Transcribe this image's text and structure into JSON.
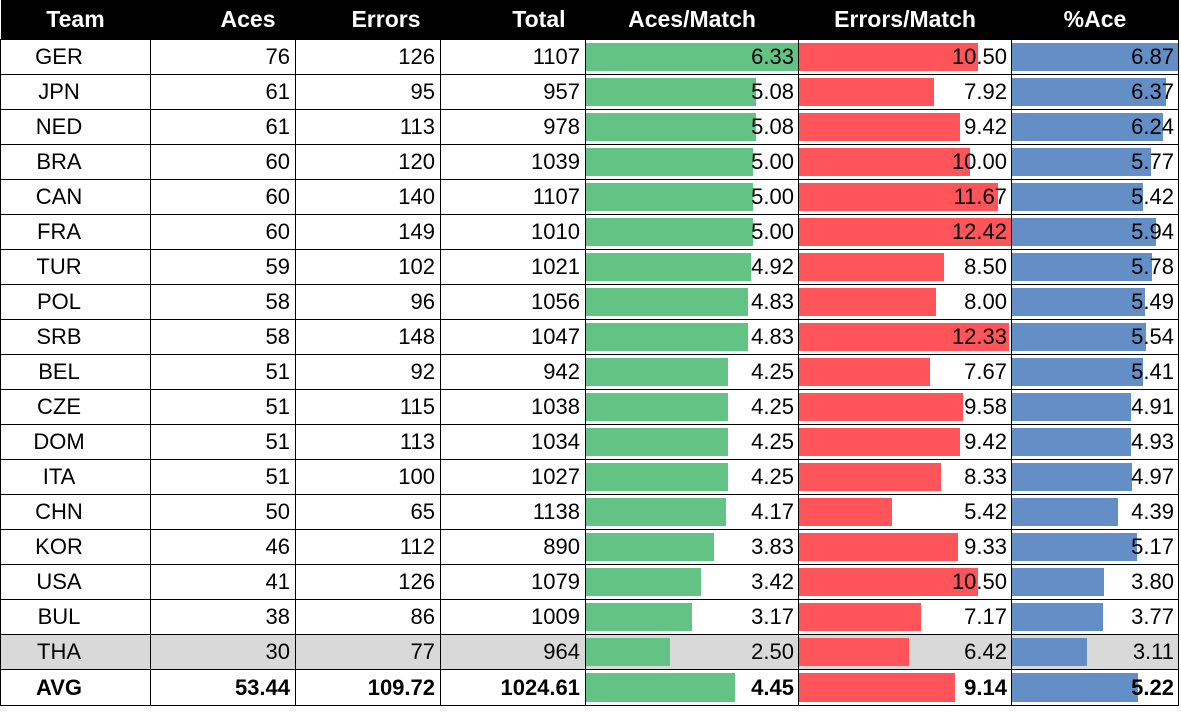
{
  "colors": {
    "header_bg": "#000000",
    "header_text": "#ffffff",
    "aces_bar": "#63c384",
    "errors_bar": "#ff555a",
    "pct_bar": "#638ec6",
    "highlight_row": "#d9d9d9"
  },
  "chart_data": {
    "type": "table",
    "columns": [
      "Team",
      "Aces",
      "Errors",
      "Total",
      "Aces/Match",
      "Errors/Match",
      "%Ace"
    ],
    "data_bars": {
      "Aces/Match": {
        "min": 0,
        "max": 6.33
      },
      "Errors/Match": {
        "min": 0,
        "max": 12.42
      },
      "%Ace": {
        "min": 0,
        "max": 6.87
      }
    },
    "rows": [
      {
        "team": "GER",
        "aces": "76",
        "errors": "126",
        "total": "1107",
        "aces_per_match": "6.33",
        "errors_per_match": "10.50",
        "pct_ace": "6.87"
      },
      {
        "team": "JPN",
        "aces": "61",
        "errors": "95",
        "total": "957",
        "aces_per_match": "5.08",
        "errors_per_match": "7.92",
        "pct_ace": "6.37"
      },
      {
        "team": "NED",
        "aces": "61",
        "errors": "113",
        "total": "978",
        "aces_per_match": "5.08",
        "errors_per_match": "9.42",
        "pct_ace": "6.24"
      },
      {
        "team": "BRA",
        "aces": "60",
        "errors": "120",
        "total": "1039",
        "aces_per_match": "5.00",
        "errors_per_match": "10.00",
        "pct_ace": "5.77"
      },
      {
        "team": "CAN",
        "aces": "60",
        "errors": "140",
        "total": "1107",
        "aces_per_match": "5.00",
        "errors_per_match": "11.67",
        "pct_ace": "5.42"
      },
      {
        "team": "FRA",
        "aces": "60",
        "errors": "149",
        "total": "1010",
        "aces_per_match": "5.00",
        "errors_per_match": "12.42",
        "pct_ace": "5.94"
      },
      {
        "team": "TUR",
        "aces": "59",
        "errors": "102",
        "total": "1021",
        "aces_per_match": "4.92",
        "errors_per_match": "8.50",
        "pct_ace": "5.78"
      },
      {
        "team": "POL",
        "aces": "58",
        "errors": "96",
        "total": "1056",
        "aces_per_match": "4.83",
        "errors_per_match": "8.00",
        "pct_ace": "5.49"
      },
      {
        "team": "SRB",
        "aces": "58",
        "errors": "148",
        "total": "1047",
        "aces_per_match": "4.83",
        "errors_per_match": "12.33",
        "pct_ace": "5.54"
      },
      {
        "team": "BEL",
        "aces": "51",
        "errors": "92",
        "total": "942",
        "aces_per_match": "4.25",
        "errors_per_match": "7.67",
        "pct_ace": "5.41"
      },
      {
        "team": "CZE",
        "aces": "51",
        "errors": "115",
        "total": "1038",
        "aces_per_match": "4.25",
        "errors_per_match": "9.58",
        "pct_ace": "4.91"
      },
      {
        "team": "DOM",
        "aces": "51",
        "errors": "113",
        "total": "1034",
        "aces_per_match": "4.25",
        "errors_per_match": "9.42",
        "pct_ace": "4.93"
      },
      {
        "team": "ITA",
        "aces": "51",
        "errors": "100",
        "total": "1027",
        "aces_per_match": "4.25",
        "errors_per_match": "8.33",
        "pct_ace": "4.97"
      },
      {
        "team": "CHN",
        "aces": "50",
        "errors": "65",
        "total": "1138",
        "aces_per_match": "4.17",
        "errors_per_match": "5.42",
        "pct_ace": "4.39"
      },
      {
        "team": "KOR",
        "aces": "46",
        "errors": "112",
        "total": "890",
        "aces_per_match": "3.83",
        "errors_per_match": "9.33",
        "pct_ace": "5.17"
      },
      {
        "team": "USA",
        "aces": "41",
        "errors": "126",
        "total": "1079",
        "aces_per_match": "3.42",
        "errors_per_match": "10.50",
        "pct_ace": "3.80"
      },
      {
        "team": "BUL",
        "aces": "38",
        "errors": "86",
        "total": "1009",
        "aces_per_match": "3.17",
        "errors_per_match": "7.17",
        "pct_ace": "3.77"
      },
      {
        "team": "THA",
        "aces": "30",
        "errors": "77",
        "total": "964",
        "aces_per_match": "2.50",
        "errors_per_match": "6.42",
        "pct_ace": "3.11",
        "highlighted": true
      },
      {
        "team": "AVG",
        "aces": "53.44",
        "errors": "109.72",
        "total": "1024.61",
        "aces_per_match": "4.45",
        "errors_per_match": "9.14",
        "pct_ace": "5.22",
        "summary": true
      }
    ]
  }
}
